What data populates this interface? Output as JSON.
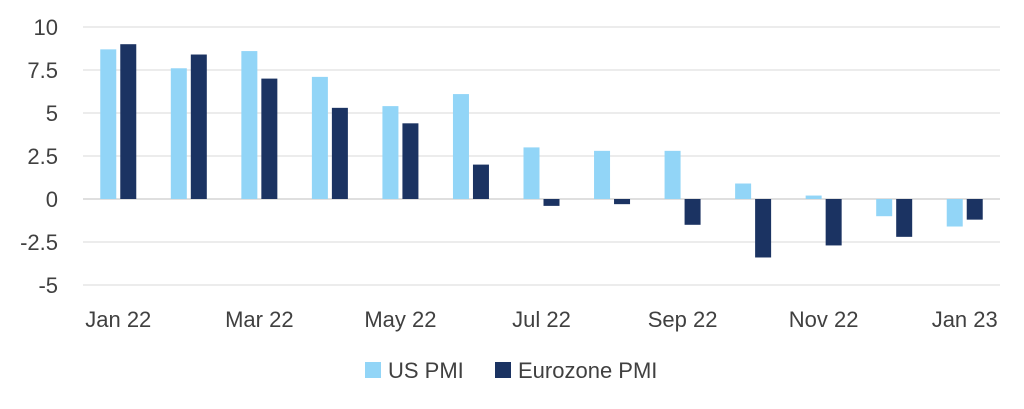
{
  "chart_data": {
    "type": "bar",
    "categories": [
      "Jan 22",
      "Feb 22",
      "Mar 22",
      "Apr 22",
      "May 22",
      "Jun 22",
      "Jul 22",
      "Aug 22",
      "Sep 22",
      "Oct 22",
      "Nov 22",
      "Dec 22",
      "Jan 23"
    ],
    "x_tick_labels": [
      "Jan 22",
      "Mar 22",
      "May 22",
      "Jul 22",
      "Sep 22",
      "Nov 22",
      "Jan 23"
    ],
    "y_tick_labels": [
      "10",
      "7.5",
      "5",
      "2.5",
      "0",
      "-2.5",
      "-5"
    ],
    "y_ticks": [
      10,
      7.5,
      5,
      2.5,
      0,
      -2.5,
      -5
    ],
    "ylim": [
      -5,
      10
    ],
    "grid": true,
    "legend_position": "bottom-center",
    "series": [
      {
        "name": "US PMI",
        "color": "#92d5f7",
        "values": [
          8.7,
          7.6,
          8.6,
          7.1,
          5.4,
          6.1,
          3.0,
          2.8,
          2.8,
          0.9,
          0.2,
          -1.0,
          -1.6
        ]
      },
      {
        "name": "Eurozone PMI",
        "color": "#1b3362",
        "values": [
          9.0,
          8.4,
          7.0,
          5.3,
          4.4,
          2.0,
          -0.4,
          -0.3,
          -1.5,
          -3.4,
          -2.7,
          -2.2,
          -1.2
        ]
      }
    ],
    "gridline_color": "#d9d9d9"
  }
}
